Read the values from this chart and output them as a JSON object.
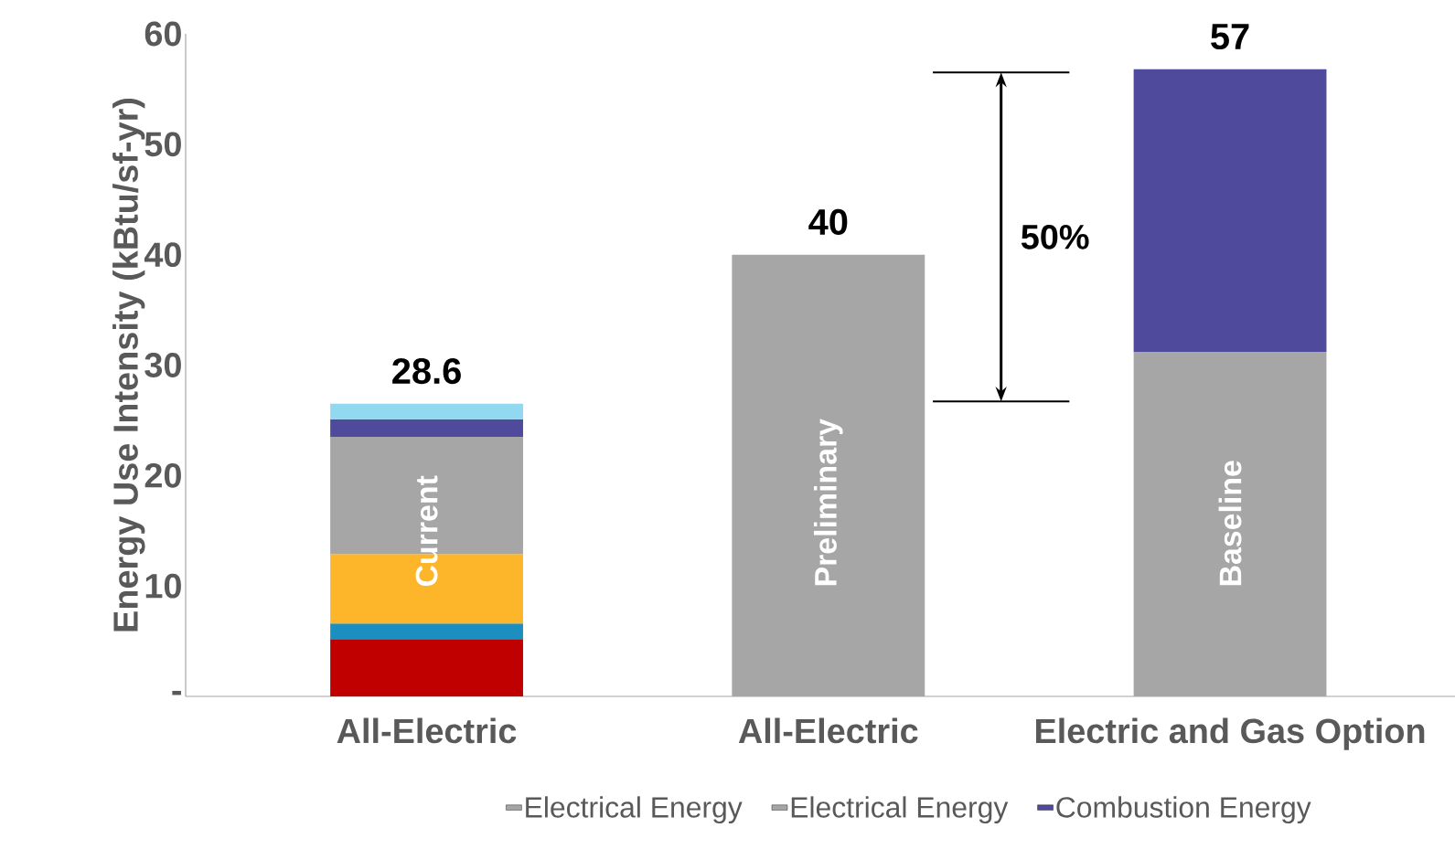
{
  "chart_data": {
    "type": "bar",
    "stacked": true,
    "ylabel": "Energy Use Intensity (kBtu/sf-yr)",
    "categories": [
      "All-Electric",
      "All-Electric",
      "Electric and Gas Option"
    ],
    "series": [
      {
        "color": "#c00000",
        "values": [
          5.2,
          null,
          null
        ]
      },
      {
        "color": "#1a8fc0",
        "values": [
          1.4,
          null,
          null
        ]
      },
      {
        "color": "#fdb62a",
        "values": [
          6.3,
          null,
          null
        ]
      },
      {
        "name": "Electrical Energy",
        "color": "#a6a6a6",
        "values": [
          10.6,
          null,
          31.2
        ]
      },
      {
        "name": "Electrical Energy",
        "color": "#a6a6a6",
        "values": [
          null,
          40,
          null
        ]
      },
      {
        "name": "Combustion Energy",
        "color": "#4f4a9c",
        "values": [
          1.6,
          null,
          25.6
        ]
      },
      {
        "color": "#92d8f0",
        "values": [
          1.4,
          null,
          null
        ]
      }
    ],
    "ylim": [
      0,
      60
    ],
    "yticks": [
      {
        "value": 0,
        "label": "-"
      },
      10,
      20,
      30,
      40,
      50,
      60
    ],
    "ref_lines": [
      {
        "axis": "y",
        "value": 56.5,
        "color": "#000000"
      },
      {
        "axis": "y",
        "value": 26.7,
        "color": "#000000"
      }
    ],
    "annotations": [
      "Current",
      "Preliminary",
      "Baseline",
      "28.6",
      "40",
      "57",
      "50%"
    ],
    "legend": "bottom",
    "grid": false
  }
}
